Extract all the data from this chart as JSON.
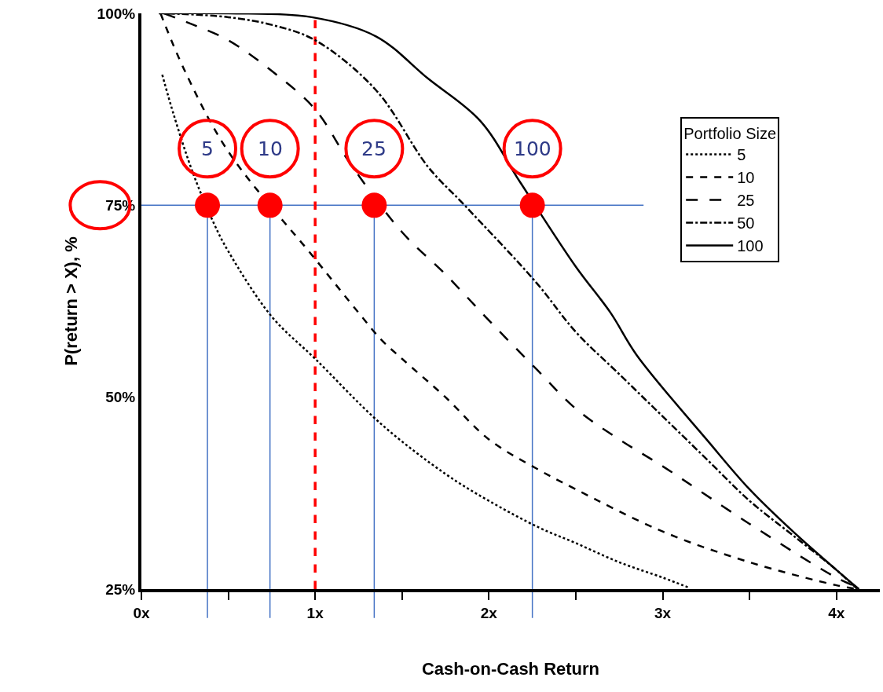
{
  "chart_data": {
    "type": "line",
    "xlabel": "Cash-on-Cash Return",
    "ylabel": "P(return > X), %",
    "legend_title": "Portfolio Size",
    "legend": "right",
    "grid": false,
    "xlim": [
      0,
      4.25
    ],
    "ylim": [
      25,
      100
    ],
    "xticks": [
      {
        "value": 0,
        "label": "0x"
      },
      {
        "value": 0.5,
        "label": null
      },
      {
        "value": 1,
        "label": "1x"
      },
      {
        "value": 1.5,
        "label": null
      },
      {
        "value": 2,
        "label": "2x"
      },
      {
        "value": 2.5,
        "label": null
      },
      {
        "value": 3,
        "label": "3x"
      },
      {
        "value": 3.5,
        "label": null
      },
      {
        "value": 4,
        "label": "4x"
      }
    ],
    "yticks": [
      {
        "value": 25,
        "label": "25%"
      },
      {
        "value": 50,
        "label": "50%"
      },
      {
        "value": 75,
        "label": "75%"
      },
      {
        "value": 100,
        "label": "100%"
      }
    ],
    "series": [
      {
        "name": "5",
        "color": "#000000",
        "line_style": "dotted",
        "x": [
          0.12,
          0.19,
          0.3,
          0.42,
          0.5,
          0.75,
          1,
          1.38,
          1.75,
          2,
          2.29,
          2.5,
          2.75,
          3,
          3.15
        ],
        "values": [
          92,
          86.5,
          79,
          72.5,
          69,
          60.5,
          55,
          46.5,
          40,
          36.5,
          33,
          31,
          28.5,
          26.5,
          25.2
        ]
      },
      {
        "name": "10",
        "color": "#000000",
        "line_style": "dashed",
        "x": [
          0.11,
          0.25,
          0.5,
          1,
          1.25,
          1.38,
          1.5,
          1.75,
          2,
          2.29,
          2.5,
          3,
          3.5,
          4,
          4.12
        ],
        "values": [
          100,
          92.5,
          82,
          68,
          61,
          57.5,
          55,
          50,
          44.5,
          40.5,
          38,
          32.5,
          28.5,
          25.5,
          25
        ]
      },
      {
        "name": "25",
        "color": "#000000",
        "line_style": "longdash",
        "x": [
          0.13,
          0.3,
          0.5,
          0.75,
          1,
          1.2,
          1.5,
          1.75,
          2,
          2.28,
          2.5,
          2.75,
          3,
          3.5,
          4,
          4.15
        ],
        "values": [
          100,
          98.5,
          96.5,
          92.5,
          87.5,
          80.5,
          71.5,
          66,
          60,
          53.5,
          48.5,
          44.5,
          41,
          33.5,
          26.5,
          25
        ]
      },
      {
        "name": "50",
        "color": "#000000",
        "line_style": "dashdot",
        "x": [
          0.15,
          0.5,
          0.75,
          1,
          1.35,
          1.65,
          1.86,
          2.27,
          2.5,
          2.75,
          3,
          3.25,
          3.5,
          3.75,
          4,
          4.12
        ],
        "values": [
          100,
          99.5,
          98.5,
          96.5,
          90,
          80,
          75,
          65,
          58.5,
          53,
          47.5,
          42,
          36.5,
          32,
          27.5,
          25
        ]
      },
      {
        "name": "100",
        "color": "#000000",
        "line_style": "solid",
        "x": [
          0.1,
          0.5,
          0.98,
          1.35,
          1.65,
          1.95,
          2.18,
          2.5,
          2.7,
          2.85,
          3.26,
          3.5,
          3.75,
          4,
          4.13
        ],
        "values": [
          100,
          100,
          99.5,
          97,
          91.5,
          86,
          78,
          67,
          61,
          55.5,
          44.3,
          38,
          32.5,
          27.5,
          25
        ]
      },
      {
        "type": "scatter",
        "marker": "circle",
        "color": "#ff0000",
        "x": [
          0.38,
          0.74,
          1.34,
          2.25
        ],
        "values": [
          75,
          75,
          75,
          75
        ]
      }
    ],
    "ref_lines": [
      {
        "axis": "y",
        "value": 75,
        "color": "#4472c4"
      },
      {
        "axis": "x",
        "value": 1,
        "color": "#ff0000",
        "line_style": "dashed"
      },
      {
        "axis": "x",
        "value": 0.38,
        "color": "#4472c4"
      },
      {
        "axis": "x",
        "value": 0.74,
        "color": "#4472c4"
      },
      {
        "axis": "x",
        "value": 1.34,
        "color": "#4472c4"
      },
      {
        "axis": "x",
        "value": 2.25,
        "color": "#4472c4"
      }
    ],
    "annotations": [
      {
        "text": "5",
        "x": 0.38,
        "y": 75
      },
      {
        "text": "10",
        "x": 0.74,
        "y": 75
      },
      {
        "text": "25",
        "x": 1.34,
        "y": 75
      },
      {
        "text": "100",
        "x": 2.25,
        "y": 75
      }
    ]
  }
}
